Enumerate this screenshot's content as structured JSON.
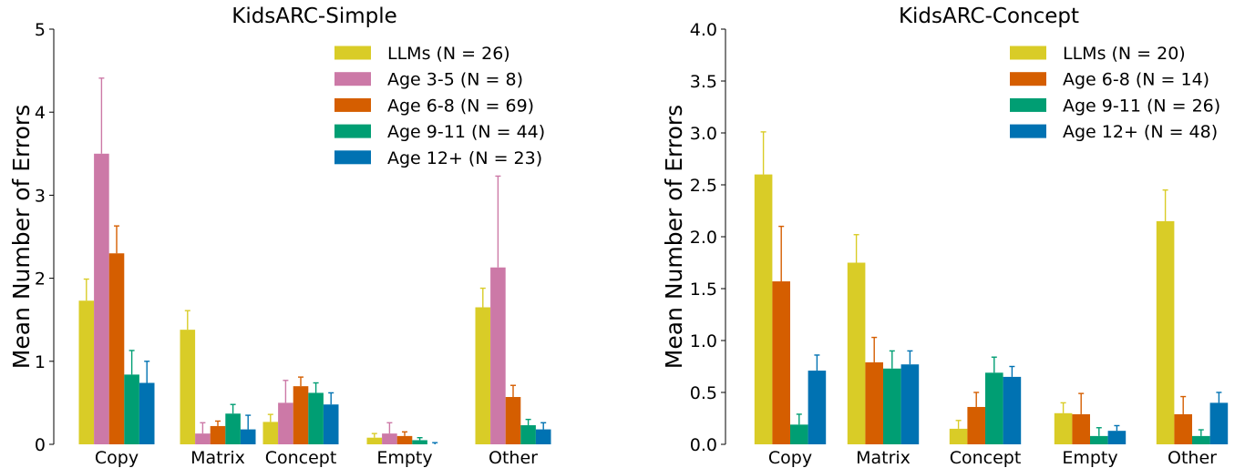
{
  "chart_data": [
    {
      "type": "bar",
      "title": "KidsARC-Simple",
      "ylabel": "Mean Number of Errors",
      "xlabel": "",
      "ylim": [
        0,
        5
      ],
      "yticks": [
        "0",
        "1",
        "2",
        "3",
        "4",
        "5"
      ],
      "ytick_values": [
        0,
        1,
        2,
        3,
        4,
        5
      ],
      "categories": [
        "Copy",
        "Matrix",
        "Concept",
        "Empty",
        "Other"
      ],
      "legend_position": "top-right",
      "series": [
        {
          "name": "LLMs (N = 26)",
          "color": "#d9cc27",
          "values": [
            1.73,
            1.38,
            0.27,
            0.08,
            1.65
          ],
          "errors": [
            0.26,
            0.23,
            0.09,
            0.05,
            0.23
          ]
        },
        {
          "name": "Age 3-5 (N = 8)",
          "color": "#cc79a7",
          "values": [
            3.5,
            0.13,
            0.5,
            0.13,
            2.13
          ],
          "errors": [
            0.91,
            0.13,
            0.27,
            0.13,
            1.1
          ]
        },
        {
          "name": "Age 6-8 (N = 69)",
          "color": "#d55e00",
          "values": [
            2.3,
            0.22,
            0.7,
            0.1,
            0.57
          ],
          "errors": [
            0.33,
            0.06,
            0.11,
            0.05,
            0.14
          ]
        },
        {
          "name": "Age 9-11 (N = 44)",
          "color": "#009e73",
          "values": [
            0.84,
            0.37,
            0.62,
            0.05,
            0.23
          ],
          "errors": [
            0.29,
            0.11,
            0.12,
            0.03,
            0.07
          ]
        },
        {
          "name": "Age 12+ (N = 23)",
          "color": "#0072b2",
          "values": [
            0.74,
            0.18,
            0.48,
            0.0,
            0.18
          ],
          "errors": [
            0.26,
            0.17,
            0.14,
            0.02,
            0.08
          ]
        }
      ]
    },
    {
      "type": "bar",
      "title": "KidsARC-Concept",
      "ylabel": "Mean Number of Errors",
      "xlabel": "",
      "ylim": [
        0,
        4
      ],
      "yticks": [
        "0.0",
        "0.5",
        "1.0",
        "1.5",
        "2.0",
        "2.5",
        "3.0",
        "3.5",
        "4.0"
      ],
      "ytick_values": [
        0,
        0.5,
        1,
        1.5,
        2,
        2.5,
        3,
        3.5,
        4
      ],
      "categories": [
        "Copy",
        "Matrix",
        "Concept",
        "Empty",
        "Other"
      ],
      "legend_position": "top-right",
      "series": [
        {
          "name": "LLMs (N = 20)",
          "color": "#d9cc27",
          "values": [
            2.6,
            1.75,
            0.15,
            0.3,
            2.15
          ],
          "errors": [
            0.41,
            0.27,
            0.08,
            0.1,
            0.3
          ]
        },
        {
          "name": "Age 6-8 (N = 14)",
          "color": "#d55e00",
          "values": [
            1.57,
            0.79,
            0.36,
            0.29,
            0.29
          ],
          "errors": [
            0.53,
            0.24,
            0.14,
            0.2,
            0.17
          ]
        },
        {
          "name": "Age 9-11 (N = 26)",
          "color": "#009e73",
          "values": [
            0.19,
            0.73,
            0.69,
            0.08,
            0.08
          ],
          "errors": [
            0.1,
            0.17,
            0.15,
            0.08,
            0.06
          ]
        },
        {
          "name": "Age 12+ (N = 48)",
          "color": "#0072b2",
          "values": [
            0.71,
            0.77,
            0.65,
            0.13,
            0.4
          ],
          "errors": [
            0.15,
            0.13,
            0.1,
            0.05,
            0.1
          ]
        }
      ]
    }
  ]
}
